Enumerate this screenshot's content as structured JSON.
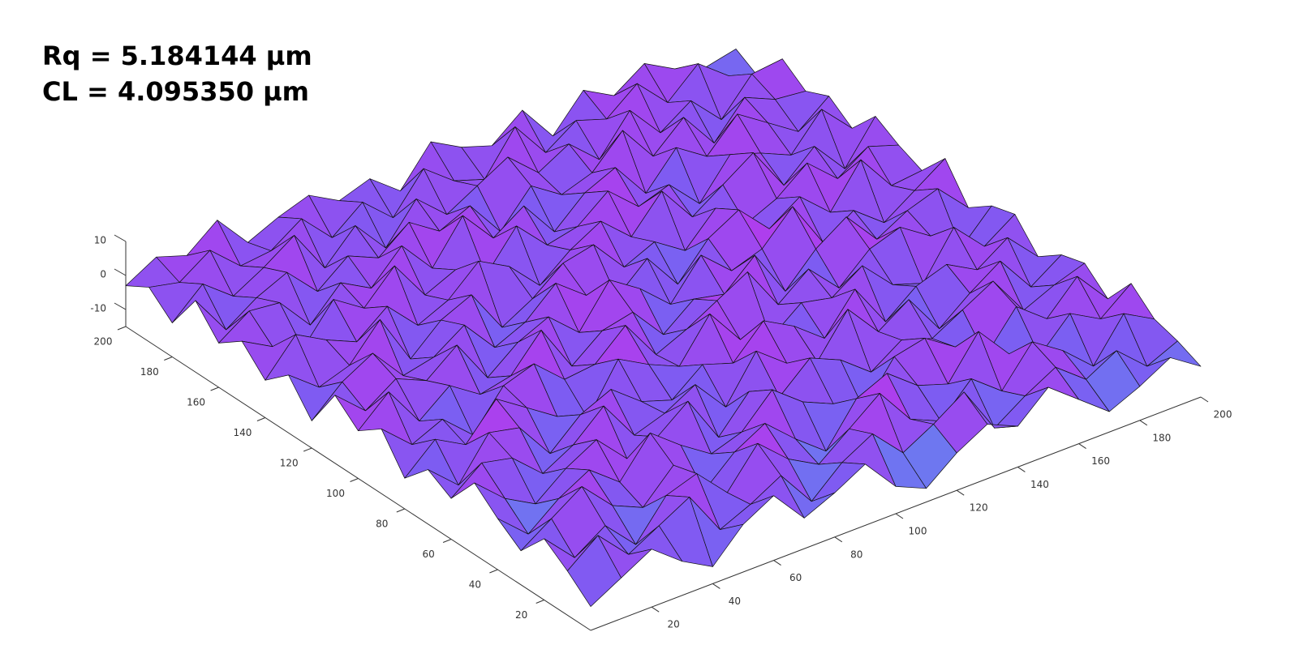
{
  "chart_data": {
    "type": "surface3d",
    "annotations": [
      "Rq = 5.184144 µm",
      "CL = 4.095350 µm"
    ],
    "x": [
      0,
      10,
      20,
      30,
      40,
      50,
      60,
      70,
      80,
      90,
      100,
      110,
      120,
      130,
      140,
      150,
      160,
      170,
      180,
      190,
      200
    ],
    "y": [
      0,
      10,
      20,
      30,
      40,
      50,
      60,
      70,
      80,
      90,
      100,
      110,
      120,
      130,
      140,
      150,
      160,
      170,
      180,
      190,
      200
    ],
    "z": [
      [
        -8,
        -3,
        2,
        -5,
        -10,
        -1,
        4,
        -6,
        -2,
        3,
        -7,
        -11,
        -4,
        1,
        -3,
        5,
        -2,
        -9,
        -5,
        0,
        -6
      ],
      [
        -2,
        5,
        -4,
        1,
        6,
        -7,
        -3,
        2,
        -9,
        -1,
        4,
        -5,
        0,
        6,
        -8,
        -2,
        3,
        -4,
        1,
        -7,
        -3
      ],
      [
        3,
        -6,
        0,
        -9,
        2,
        5,
        -4,
        7,
        -1,
        -6,
        1,
        8,
        -3,
        -7,
        2,
        -5,
        6,
        0,
        -8,
        4,
        -1
      ],
      [
        -5,
        1,
        7,
        -2,
        -6,
        3,
        -8,
        0,
        5,
        -3,
        -10,
        2,
        6,
        -1,
        -4,
        8,
        -2,
        -6,
        3,
        -2,
        5
      ],
      [
        0,
        -8,
        -1,
        4,
        -3,
        8,
        1,
        -5,
        -2,
        7,
        0,
        -4,
        -9,
        3,
        5,
        -1,
        -7,
        4,
        -3,
        6,
        -4
      ],
      [
        6,
        -2,
        -7,
        0,
        5,
        -4,
        -1,
        6,
        -8,
        2,
        -3,
        5,
        1,
        -6,
        0,
        -3,
        2,
        7,
        -5,
        -1,
        2
      ],
      [
        -3,
        4,
        2,
        -6,
        -1,
        7,
        -5,
        -2,
        3,
        -7,
        6,
        -1,
        -4,
        8,
        -2,
        4,
        -8,
        -1,
        5,
        -6,
        0
      ],
      [
        1,
        -7,
        5,
        3,
        -8,
        0,
        4,
        -3,
        -6,
        1,
        -2,
        7,
        2,
        -5,
        6,
        -7,
        0,
        3,
        -2,
        4,
        -5
      ],
      [
        -6,
        2,
        -3,
        7,
        1,
        -5,
        -9,
        5,
        0,
        -4,
        8,
        -3,
        -6,
        1,
        -1,
        5,
        -4,
        -7,
        6,
        -3,
        3
      ],
      [
        4,
        -4,
        0,
        -8,
        3,
        6,
        -2,
        -1,
        7,
        -5,
        -1,
        4,
        9,
        -4,
        3,
        -6,
        2,
        5,
        -1,
        -8,
        1
      ],
      [
        -1,
        7,
        -5,
        2,
        -4,
        -2,
        8,
        -6,
        1,
        3,
        -7,
        0,
        -2,
        6,
        -8,
        1,
        7,
        -3,
        2,
        5,
        -4
      ],
      [
        5,
        -3,
        3,
        -1,
        6,
        -7,
        0,
        4,
        -4,
        8,
        2,
        -6,
        5,
        -3,
        0,
        9,
        -5,
        1,
        -6,
        0,
        6
      ],
      [
        -7,
        1,
        6,
        -4,
        -2,
        4,
        -6,
        -2,
        6,
        -1,
        -5,
        3,
        -8,
        2,
        7,
        -2,
        4,
        -4,
        8,
        -3,
        -2
      ],
      [
        2,
        -5,
        -2,
        8,
        -7,
        1,
        5,
        -8,
        -3,
        4,
        6,
        -4,
        0,
        -6,
        3,
        -5,
        -1,
        6,
        -2,
        4,
        1
      ],
      [
        -4,
        6,
        1,
        -3,
        4,
        -5,
        -1,
        7,
        2,
        -7,
        0,
        5,
        -3,
        7,
        -4,
        2,
        8,
        -5,
        3,
        -7,
        5
      ],
      [
        3,
        -2,
        -6,
        5,
        -1,
        8,
        -4,
        0,
        -5,
        6,
        -3,
        -1,
        6,
        -2,
        1,
        -8,
        3,
        0,
        -4,
        6,
        -3
      ],
      [
        -2,
        4,
        3,
        -7,
        2,
        -3,
        6,
        -4,
        8,
        -2,
        4,
        -7,
        1,
        5,
        -6,
        4,
        -2,
        7,
        1,
        -5,
        2
      ],
      [
        6,
        -6,
        0,
        4,
        -5,
        2,
        -2,
        5,
        -1,
        3,
        -8,
        2,
        -4,
        -1,
        8,
        -3,
        5,
        -6,
        4,
        0,
        -1
      ],
      [
        -5,
        3,
        -4,
        1,
        7,
        -6,
        3,
        -7,
        4,
        -4,
        1,
        6,
        -2,
        3,
        -5,
        6,
        -4,
        2,
        -7,
        3,
        4
      ],
      [
        1,
        -1,
        5,
        -3,
        -2,
        4,
        -5,
        2,
        -6,
        5,
        -2,
        -5,
        7,
        -4,
        2,
        -1,
        6,
        -3,
        5,
        -2,
        -6
      ],
      [
        -3,
        2,
        -1,
        6,
        -4,
        0,
        3,
        -2,
        1,
        -6,
        5,
        0,
        -3,
        4,
        -7,
        3,
        -2,
        4,
        -1,
        -4,
        -2
      ]
    ],
    "xlim": [
      0,
      200
    ],
    "ylim": [
      0,
      200
    ],
    "zlim": [
      -15,
      10
    ],
    "xticks": [
      20,
      40,
      60,
      80,
      100,
      120,
      140,
      160,
      180,
      200
    ],
    "yticks": [
      20,
      40,
      60,
      80,
      100,
      120,
      140,
      160,
      180,
      200
    ],
    "zticks": [
      -10,
      0,
      10
    ],
    "colormap": [
      "#30e4ea",
      "#7d5cf2",
      "#e41ee8"
    ]
  }
}
